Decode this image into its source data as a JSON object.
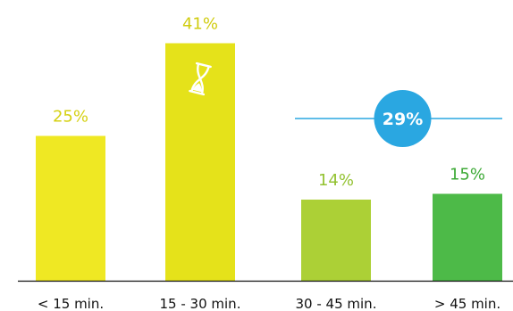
{
  "chart_data": {
    "type": "bar",
    "categories": [
      "< 15 min.",
      "15 - 30 min.",
      "30 - 45 min.",
      "> 45 min."
    ],
    "values": [
      25,
      41,
      14,
      15
    ],
    "data_labels": [
      "25%",
      "41%",
      "14%",
      "15%"
    ],
    "ylim": [
      0,
      45
    ],
    "grid": false,
    "legend": "none",
    "bar_colors": [
      "#efe823",
      "#e5e21a",
      "#acd036",
      "#4dba48"
    ],
    "label_colors": [
      "#d5d113",
      "#d0cc0f",
      "#93c231",
      "#3eaa37"
    ],
    "icon": {
      "name": "hourglass-icon",
      "on_category": "15 - 30 min."
    },
    "annotation": {
      "text": "29%",
      "spans_categories": [
        "30 - 45 min.",
        "> 45 min."
      ],
      "color": "#2aa7e1"
    },
    "axis_color": "#111111"
  }
}
